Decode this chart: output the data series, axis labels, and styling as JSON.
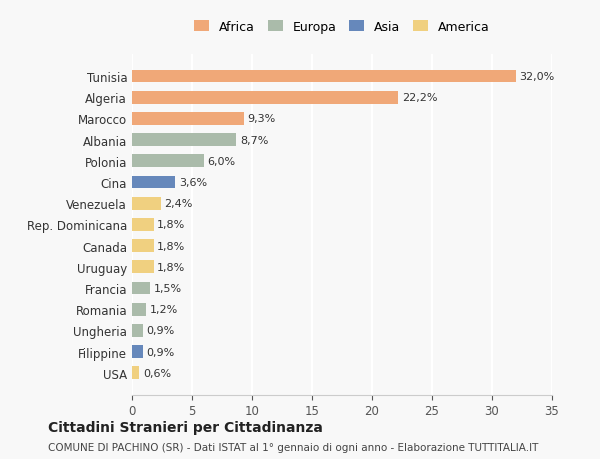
{
  "countries": [
    "Tunisia",
    "Algeria",
    "Marocco",
    "Albania",
    "Polonia",
    "Cina",
    "Venezuela",
    "Rep. Dominicana",
    "Canada",
    "Uruguay",
    "Francia",
    "Romania",
    "Ungheria",
    "Filippine",
    "USA"
  ],
  "values": [
    32.0,
    22.2,
    9.3,
    8.7,
    6.0,
    3.6,
    2.4,
    1.8,
    1.8,
    1.8,
    1.5,
    1.2,
    0.9,
    0.9,
    0.6
  ],
  "labels": [
    "32,0%",
    "22,2%",
    "9,3%",
    "8,7%",
    "6,0%",
    "3,6%",
    "2,4%",
    "1,8%",
    "1,8%",
    "1,8%",
    "1,5%",
    "1,2%",
    "0,9%",
    "0,9%",
    "0,6%"
  ],
  "continents": [
    "Africa",
    "Africa",
    "Africa",
    "Europa",
    "Europa",
    "Asia",
    "America",
    "America",
    "America",
    "America",
    "Europa",
    "Europa",
    "Europa",
    "Asia",
    "America"
  ],
  "colors": {
    "Africa": "#F0A878",
    "Europa": "#AABBAA",
    "Asia": "#6688BB",
    "America": "#F0D080"
  },
  "bg_color": "#F8F8F8",
  "grid_color": "#FFFFFF",
  "title": "Cittadini Stranieri per Cittadinanza",
  "subtitle": "COMUNE DI PACHINO (SR) - Dati ISTAT al 1° gennaio di ogni anno - Elaborazione TUTTITALIA.IT",
  "xlim": [
    0,
    35
  ],
  "xticks": [
    0,
    5,
    10,
    15,
    20,
    25,
    30,
    35
  ],
  "legend_order": [
    "Africa",
    "Europa",
    "Asia",
    "America"
  ]
}
